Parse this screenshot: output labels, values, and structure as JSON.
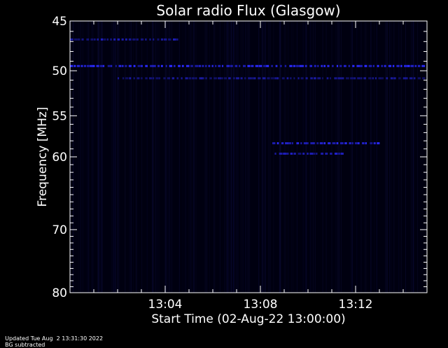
{
  "chart_data": {
    "type": "heatmap",
    "title": "Solar radio Flux (Glasgow)",
    "xlabel": "Start Time (02-Aug-22 13:00:00)",
    "ylabel": "Frequency [MHz]",
    "x_range_minutes": [
      0,
      15
    ],
    "y_range_mhz": [
      45,
      80
    ],
    "y_scale": "log",
    "y_ticks": [
      45,
      50,
      55,
      60,
      70,
      80
    ],
    "x_ticks": [
      {
        "minute": 4,
        "label": "13:04"
      },
      {
        "minute": 8,
        "label": "13:08"
      },
      {
        "minute": 12,
        "label": "13:12"
      }
    ],
    "colormap": {
      "low": "#000010",
      "high": "#2a2aff"
    },
    "features": [
      {
        "name": "band",
        "freq_mhz": 46.8,
        "t_start": 0,
        "t_end": 4.5,
        "intensity": 0.6
      },
      {
        "name": "band",
        "freq_mhz": 49.5,
        "t_start": 0,
        "t_end": 14.8,
        "intensity": 0.9
      },
      {
        "name": "band",
        "freq_mhz": 50.8,
        "t_start": 2,
        "t_end": 14.8,
        "intensity": 0.5
      },
      {
        "name": "burst",
        "freq_mhz": 58.3,
        "t_start": 8.5,
        "t_end": 13.0,
        "intensity": 0.85
      },
      {
        "name": "burst",
        "freq_mhz": 59.6,
        "t_start": 8.6,
        "t_end": 11.5,
        "intensity": 0.65
      }
    ]
  },
  "footer": {
    "updated": "Updated Tue Aug  2 13:31:30 2022",
    "note": "BG subtracted"
  }
}
